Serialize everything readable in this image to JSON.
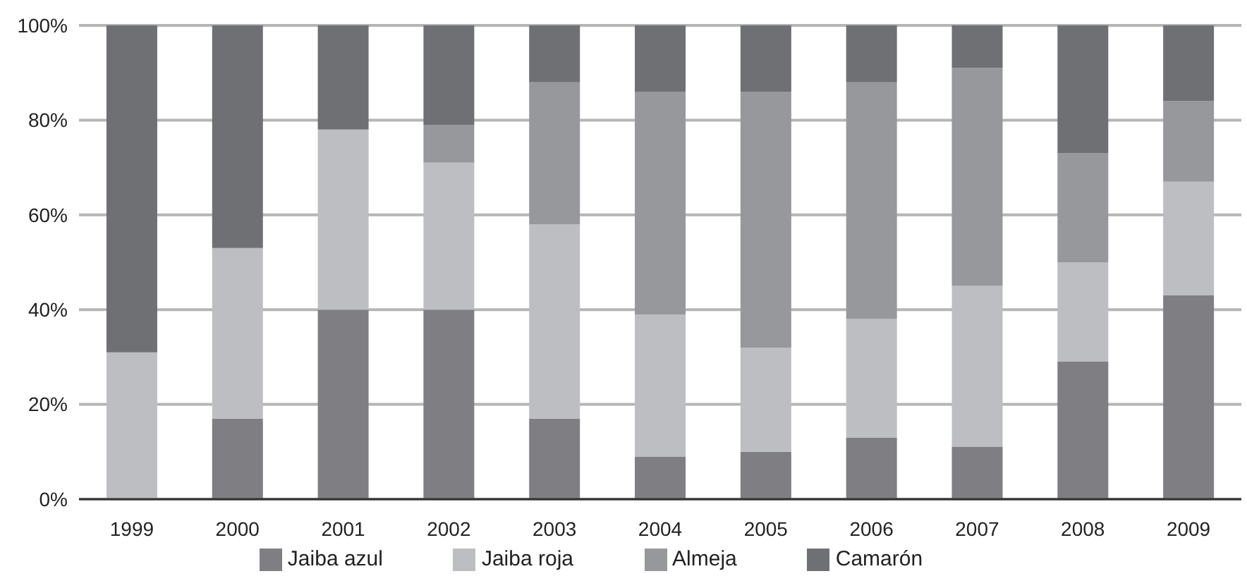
{
  "chart_data": {
    "type": "bar",
    "stacked": true,
    "categories": [
      "1999",
      "2000",
      "2001",
      "2002",
      "2003",
      "2004",
      "2005",
      "2006",
      "2007",
      "2008",
      "2009"
    ],
    "series": [
      {
        "name": "Jaiba azul",
        "color": "#7f7f83",
        "values": [
          0,
          17,
          40,
          40,
          17,
          9,
          10,
          13,
          11,
          29,
          43
        ]
      },
      {
        "name": "Jaiba roja",
        "color": "#bdbec1",
        "values": [
          31,
          36,
          38,
          31,
          41,
          30,
          22,
          25,
          34,
          21,
          24
        ]
      },
      {
        "name": "Almeja",
        "color": "#97989b",
        "values": [
          0,
          0,
          0,
          8,
          30,
          47,
          54,
          50,
          46,
          23,
          17
        ]
      },
      {
        "name": "Camarón",
        "color": "#6f7074",
        "values": [
          69,
          47,
          22,
          21,
          12,
          14,
          14,
          12,
          9,
          27,
          16
        ]
      }
    ],
    "ylim": [
      0,
      100
    ],
    "yticks": [
      {
        "value": 0,
        "label": "0%"
      },
      {
        "value": 20,
        "label": "20%"
      },
      {
        "value": 40,
        "label": "40%"
      },
      {
        "value": 60,
        "label": "60%"
      },
      {
        "value": 80,
        "label": "80%"
      },
      {
        "value": 100,
        "label": "100%"
      }
    ],
    "grid": "y",
    "legend": "bottom"
  }
}
